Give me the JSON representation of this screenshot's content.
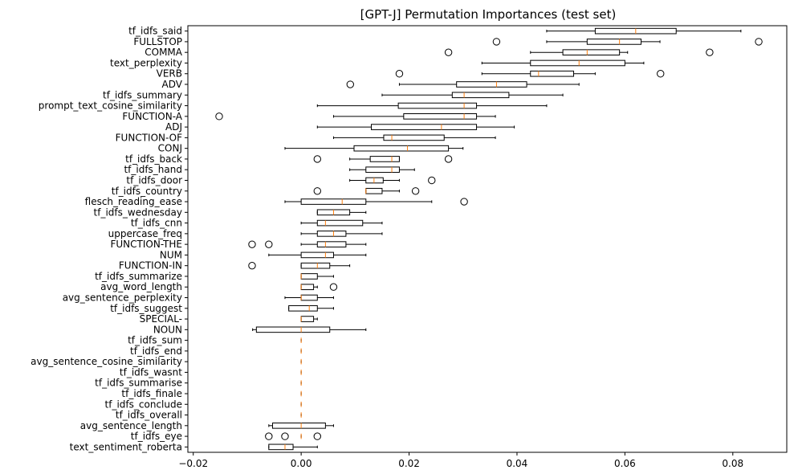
{
  "chart_data": {
    "type": "boxplot",
    "orientation": "horizontal",
    "title": "[GPT-J] Permutation Importances (test set)",
    "xlabel": "",
    "ylabel": "",
    "xlim": [
      -0.021,
      0.09
    ],
    "xticks": [
      -0.02,
      0.0,
      0.02,
      0.04,
      0.06,
      0.08
    ],
    "xtick_labels": [
      "−0.02",
      "0.00",
      "0.02",
      "0.04",
      "0.06",
      "0.08"
    ],
    "grid": false,
    "box_color": "#000000",
    "median_color": "#ff7f0e",
    "features": [
      {
        "name": "tf_idfs_said",
        "wl": 0.0455,
        "q1": 0.0545,
        "med": 0.062,
        "q3": 0.0695,
        "wh": 0.0815,
        "fliers": []
      },
      {
        "name": "FULLSTOP",
        "wl": 0.0455,
        "q1": 0.053,
        "med": 0.059,
        "q3": 0.063,
        "wh": 0.0665,
        "fliers": [
          0.0362,
          0.0848
        ]
      },
      {
        "name": "COMMA",
        "wl": 0.0425,
        "q1": 0.0485,
        "med": 0.053,
        "q3": 0.059,
        "wh": 0.0605,
        "fliers": [
          0.0273,
          0.0757
        ]
      },
      {
        "name": "text_perplexity",
        "wl": 0.0335,
        "q1": 0.0425,
        "med": 0.0515,
        "q3": 0.06,
        "wh": 0.0635,
        "fliers": []
      },
      {
        "name": "VERB",
        "wl": 0.0335,
        "q1": 0.0425,
        "med": 0.044,
        "q3": 0.0505,
        "wh": 0.0545,
        "fliers": [
          0.0182,
          0.0666
        ]
      },
      {
        "name": "ADV",
        "wl": 0.0182,
        "q1": 0.0288,
        "med": 0.0362,
        "q3": 0.0418,
        "wh": 0.0515,
        "fliers": [
          0.0091
        ]
      },
      {
        "name": "tf_idfs_summary",
        "wl": 0.015,
        "q1": 0.028,
        "med": 0.0302,
        "q3": 0.0385,
        "wh": 0.0485,
        "fliers": []
      },
      {
        "name": "prompt_text_cosine_similarity",
        "wl": 0.003,
        "q1": 0.018,
        "med": 0.0302,
        "q3": 0.0325,
        "wh": 0.0455,
        "fliers": []
      },
      {
        "name": "FUNCTION-A",
        "wl": 0.006,
        "q1": 0.019,
        "med": 0.0302,
        "q3": 0.0325,
        "wh": 0.036,
        "fliers": [
          -0.0152
        ]
      },
      {
        "name": "ADJ",
        "wl": 0.003,
        "q1": 0.013,
        "med": 0.026,
        "q3": 0.0325,
        "wh": 0.0395,
        "fliers": []
      },
      {
        "name": "FUNCTION-OF",
        "wl": 0.006,
        "q1": 0.0153,
        "med": 0.0168,
        "q3": 0.0265,
        "wh": 0.036,
        "fliers": []
      },
      {
        "name": "CONJ",
        "wl": -0.003,
        "q1": 0.0098,
        "med": 0.0197,
        "q3": 0.0273,
        "wh": 0.03,
        "fliers": []
      },
      {
        "name": "tf_idfs_back",
        "wl": 0.009,
        "q1": 0.0128,
        "med": 0.0168,
        "q3": 0.0182,
        "wh": 0.0182,
        "fliers": [
          0.003,
          0.0273
        ]
      },
      {
        "name": "tf_idfs_hand",
        "wl": 0.009,
        "q1": 0.012,
        "med": 0.0168,
        "q3": 0.0182,
        "wh": 0.021,
        "fliers": []
      },
      {
        "name": "tf_idfs_door",
        "wl": 0.009,
        "q1": 0.012,
        "med": 0.0135,
        "q3": 0.0152,
        "wh": 0.0182,
        "fliers": [
          0.0242
        ]
      },
      {
        "name": "tf_idfs_country",
        "wl": 0.012,
        "q1": 0.012,
        "med": 0.012,
        "q3": 0.015,
        "wh": 0.0182,
        "fliers": [
          0.003,
          0.0212
        ]
      },
      {
        "name": "flesch_reading_ease",
        "wl": -0.003,
        "q1": 0.0,
        "med": 0.0076,
        "q3": 0.012,
        "wh": 0.0242,
        "fliers": [
          0.0302
        ]
      },
      {
        "name": "tf_idfs_wednesday",
        "wl": 0.003,
        "q1": 0.003,
        "med": 0.006,
        "q3": 0.009,
        "wh": 0.012,
        "fliers": []
      },
      {
        "name": "tf_idfs_cnn",
        "wl": 0.0,
        "q1": 0.003,
        "med": 0.0045,
        "q3": 0.0114,
        "wh": 0.015,
        "fliers": []
      },
      {
        "name": "uppercase_freq",
        "wl": 0.0,
        "q1": 0.003,
        "med": 0.006,
        "q3": 0.0083,
        "wh": 0.015,
        "fliers": []
      },
      {
        "name": "FUNCTION-THE",
        "wl": 0.0,
        "q1": 0.003,
        "med": 0.0045,
        "q3": 0.0083,
        "wh": 0.012,
        "fliers": [
          -0.0091,
          -0.006
        ]
      },
      {
        "name": "NUM",
        "wl": -0.006,
        "q1": 0.0,
        "med": 0.0045,
        "q3": 0.006,
        "wh": 0.012,
        "fliers": []
      },
      {
        "name": "FUNCTION-IN",
        "wl": 0.0,
        "q1": 0.0,
        "med": 0.003,
        "q3": 0.0053,
        "wh": 0.009,
        "fliers": [
          -0.0091
        ]
      },
      {
        "name": "tf_idfs_summarize",
        "wl": 0.0,
        "q1": 0.0,
        "med": 0.0,
        "q3": 0.003,
        "wh": 0.006,
        "fliers": []
      },
      {
        "name": "avg_word_length",
        "wl": 0.0,
        "q1": 0.0,
        "med": 0.0,
        "q3": 0.0023,
        "wh": 0.003,
        "fliers": [
          0.006
        ]
      },
      {
        "name": "avg_sentence_perplexity",
        "wl": -0.003,
        "q1": 0.0,
        "med": 0.0,
        "q3": 0.003,
        "wh": 0.006,
        "fliers": []
      },
      {
        "name": "tf_idfs_suggest",
        "wl": -0.0023,
        "q1": -0.0023,
        "med": 0.0015,
        "q3": 0.003,
        "wh": 0.006,
        "fliers": []
      },
      {
        "name": "SPECIAL-",
        "wl": 0.0,
        "q1": 0.0,
        "med": 0.0,
        "q3": 0.0023,
        "wh": 0.003,
        "fliers": []
      },
      {
        "name": "NOUN",
        "wl": -0.009,
        "q1": -0.0083,
        "med": 0.0,
        "q3": 0.0053,
        "wh": 0.012,
        "fliers": []
      },
      {
        "name": "tf_idfs_sum",
        "wl": 0.0,
        "q1": 0.0,
        "med": 0.0,
        "q3": 0.0,
        "wh": 0.0,
        "fliers": []
      },
      {
        "name": "tf_idfs_end",
        "wl": 0.0,
        "q1": 0.0,
        "med": 0.0,
        "q3": 0.0,
        "wh": 0.0,
        "fliers": []
      },
      {
        "name": "avg_sentence_cosine_similarity",
        "wl": 0.0,
        "q1": 0.0,
        "med": 0.0,
        "q3": 0.0,
        "wh": 0.0,
        "fliers": []
      },
      {
        "name": "tf_idfs_wasnt",
        "wl": 0.0,
        "q1": 0.0,
        "med": 0.0,
        "q3": 0.0,
        "wh": 0.0,
        "fliers": []
      },
      {
        "name": "tf_idfs_summarise",
        "wl": 0.0,
        "q1": 0.0,
        "med": 0.0,
        "q3": 0.0,
        "wh": 0.0,
        "fliers": []
      },
      {
        "name": "tf_idfs_finale",
        "wl": 0.0,
        "q1": 0.0,
        "med": 0.0,
        "q3": 0.0,
        "wh": 0.0,
        "fliers": []
      },
      {
        "name": "tf_idfs_conclude",
        "wl": 0.0,
        "q1": 0.0,
        "med": 0.0,
        "q3": 0.0,
        "wh": 0.0,
        "fliers": []
      },
      {
        "name": "tf_idfs_overall",
        "wl": 0.0,
        "q1": 0.0,
        "med": 0.0,
        "q3": 0.0,
        "wh": 0.0,
        "fliers": []
      },
      {
        "name": "avg_sentence_length",
        "wl": -0.006,
        "q1": -0.0053,
        "med": 0.0,
        "q3": 0.0045,
        "wh": 0.006,
        "fliers": []
      },
      {
        "name": "tf_idfs_eye",
        "wl": 0.0,
        "q1": 0.0,
        "med": 0.0,
        "q3": 0.0,
        "wh": 0.0,
        "fliers": [
          -0.006,
          -0.003,
          0.003
        ]
      },
      {
        "name": "text_sentiment_roberta",
        "wl": -0.006,
        "q1": -0.006,
        "med": -0.003,
        "q3": -0.0015,
        "wh": 0.003,
        "fliers": []
      }
    ]
  }
}
